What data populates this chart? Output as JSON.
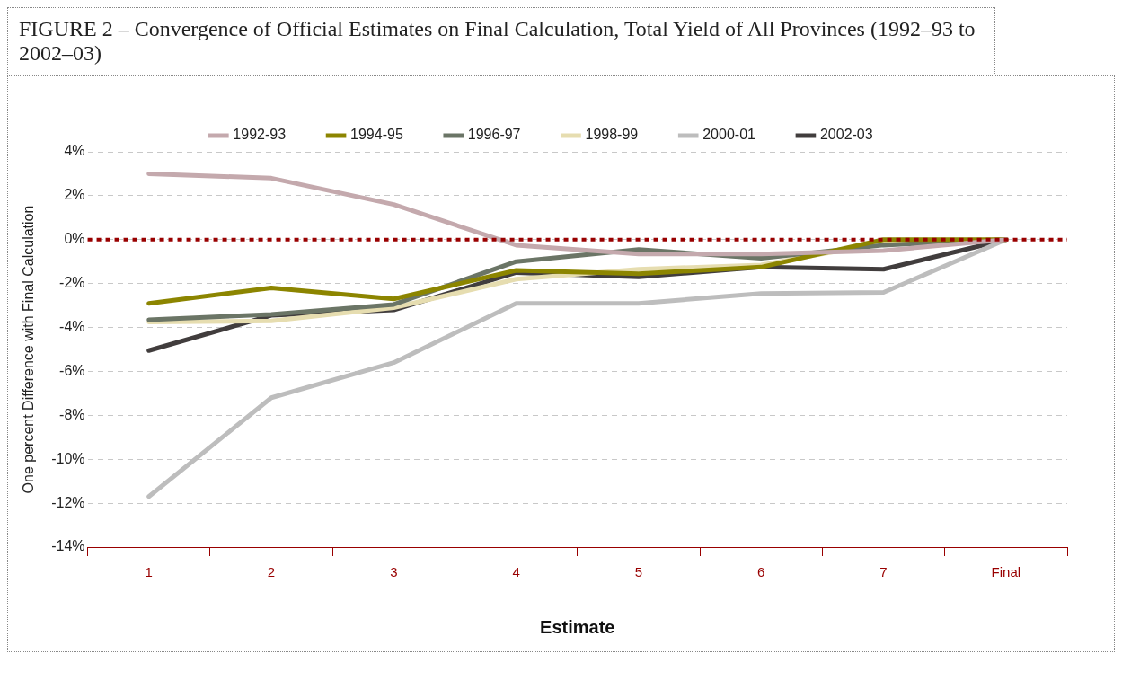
{
  "chart_data": {
    "type": "line",
    "title": "FIGURE 2 – Convergence of Official Estimates on Final Calculation, Total Yield of All Provinces (1992–93 to 2002–03)",
    "xlabel": "Estimate",
    "ylabel": "One percent Difference with Final Calculation",
    "categories": [
      "1",
      "2",
      "3",
      "4",
      "5",
      "6",
      "7",
      "Final"
    ],
    "series": [
      {
        "name": "1992-93",
        "color": "#c4a9ad",
        "values": [
          3.0,
          2.8,
          1.6,
          -0.25,
          -0.65,
          -0.65,
          -0.5,
          0
        ]
      },
      {
        "name": "1994-95",
        "color": "#8c8500",
        "values": [
          -2.9,
          -2.2,
          -2.7,
          -1.4,
          -1.55,
          -1.25,
          0,
          0
        ]
      },
      {
        "name": "1996-97",
        "color": "#6b7566",
        "values": [
          -3.65,
          -3.4,
          -2.95,
          -1.0,
          -0.45,
          -0.85,
          -0.25,
          0
        ]
      },
      {
        "name": "1998-99",
        "color": "#e6ddb0",
        "values": [
          -3.75,
          -3.7,
          -3.1,
          -1.8,
          -1.35,
          -1.15,
          -0.15,
          0
        ]
      },
      {
        "name": "2000-01",
        "color": "#bdbdbd",
        "values": [
          -11.7,
          -7.2,
          -5.6,
          -2.9,
          -2.9,
          -2.45,
          -2.4,
          0
        ]
      },
      {
        "name": "2002-03",
        "color": "#413d3d",
        "values": [
          -5.05,
          -3.45,
          -3.2,
          -1.5,
          -1.7,
          -1.25,
          -1.35,
          0
        ]
      }
    ],
    "ylim": [
      -14,
      4
    ],
    "yticks": [
      {
        "value": -14,
        "label": "-14%"
      },
      {
        "value": -12,
        "label": "-12%"
      },
      {
        "value": -10,
        "label": "-10%"
      },
      {
        "value": -8,
        "label": "-8%"
      },
      {
        "value": -6,
        "label": "-6%"
      },
      {
        "value": -4,
        "label": "-4%"
      },
      {
        "value": -2,
        "label": "-2%"
      },
      {
        "value": 0,
        "label": "0%"
      },
      {
        "value": 2,
        "label": "2%"
      },
      {
        "value": 4,
        "label": "4%"
      }
    ],
    "ref_lines": [
      {
        "axis": "y",
        "value": 0,
        "label": null,
        "color": "#990000",
        "line_style": "dotted"
      }
    ],
    "grid": "y",
    "legend": "top",
    "marker": "none",
    "line_style": "solid"
  }
}
